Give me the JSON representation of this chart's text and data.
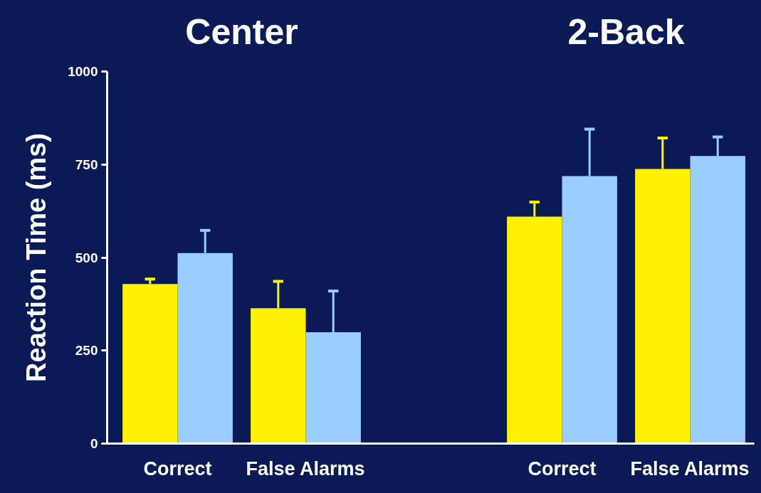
{
  "chart_data": {
    "type": "bar",
    "ylabel": "Reaction Time (ms)",
    "categories": [
      "Correct",
      "False Alarms",
      null,
      "Correct",
      "False Alarms"
    ],
    "series": [
      {
        "color": "#fff200",
        "values": [
          429,
          364,
          null,
          610,
          738
        ],
        "errors": [
          [
            429,
            442
          ],
          [
            364,
            436
          ],
          null,
          [
            610,
            649
          ],
          [
            738,
            821
          ]
        ]
      },
      {
        "color": "#99ccff",
        "values": [
          512,
          299,
          null,
          719,
          773
        ],
        "errors": [
          [
            512,
            573
          ],
          [
            299,
            410
          ],
          null,
          [
            719,
            845
          ],
          [
            773,
            824
          ]
        ]
      }
    ],
    "annotations": [
      "Center",
      "2-Back"
    ],
    "ylim": [
      0,
      1000
    ],
    "yticks": [
      0,
      250,
      500,
      750,
      1000
    ],
    "grid": false
  }
}
